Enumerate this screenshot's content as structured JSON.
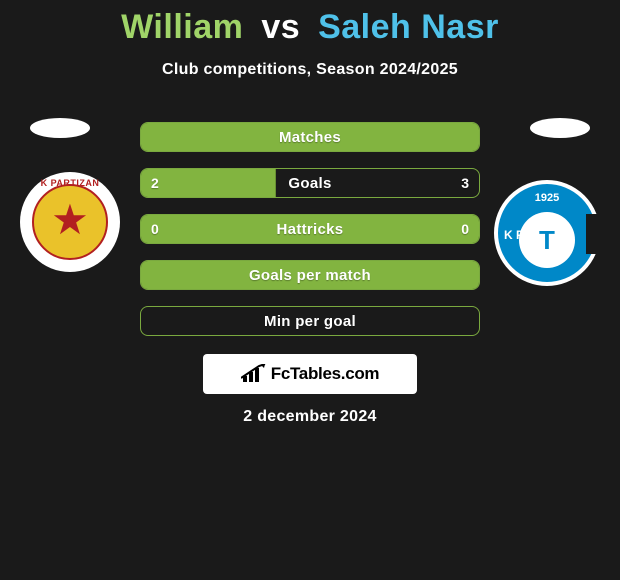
{
  "title": {
    "player1": "William",
    "vs": "vs",
    "player2": "Saleh Nasr"
  },
  "subtitle": "Club competitions, Season 2024/2025",
  "colors": {
    "bg": "#1a1a1a",
    "bar_fill": "#82b440",
    "bar_border": "#7aa93f",
    "text": "#ffffff",
    "p1": "#a0d468",
    "p2": "#4fc1e9"
  },
  "bars": [
    {
      "label": "Matches",
      "left": null,
      "right": null,
      "fill": 100
    },
    {
      "label": "Goals",
      "left": "2",
      "right": "3",
      "fill": 40
    },
    {
      "label": "Hattricks",
      "left": "0",
      "right": "0",
      "fill": 100
    },
    {
      "label": "Goals per match",
      "left": null,
      "right": null,
      "fill": 100
    },
    {
      "label": "Min per goal",
      "left": null,
      "right": null,
      "fill": 0
    }
  ],
  "club_left": {
    "ring_text": "K PARTIZAN",
    "letter": "★"
  },
  "club_right": {
    "year": "1925",
    "letter": "T",
    "kf": "K F"
  },
  "brand": "FcTables.com",
  "date": "2 december 2024"
}
